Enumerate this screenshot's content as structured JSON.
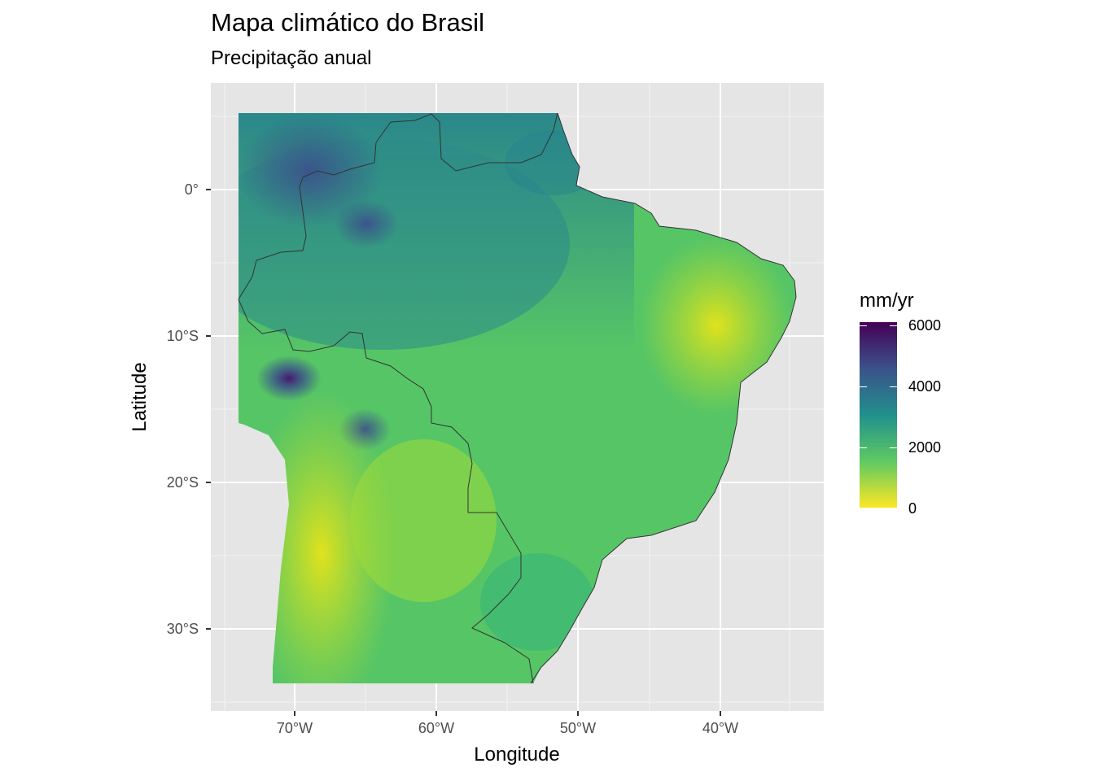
{
  "title": "Mapa climático do Brasil",
  "subtitle": "Precipitação anual",
  "axes": {
    "xlabel": "Longitude",
    "ylabel": "Latitude",
    "xticks": [
      "70°W",
      "60°W",
      "50°W",
      "40°W"
    ],
    "yticks": [
      "0°",
      "10°S",
      "20°S",
      "30°S"
    ]
  },
  "legend": {
    "title": "mm/yr",
    "labels": [
      "6000",
      "4000",
      "2000",
      "0"
    ],
    "colors": [
      "#440154",
      "#3b528b",
      "#21908c",
      "#5ec962",
      "#fde725"
    ],
    "range": [
      0,
      6000
    ]
  },
  "colors": {
    "panel_background": "#e5e5e5",
    "grid": "#ffffff",
    "border": "#333333"
  }
}
